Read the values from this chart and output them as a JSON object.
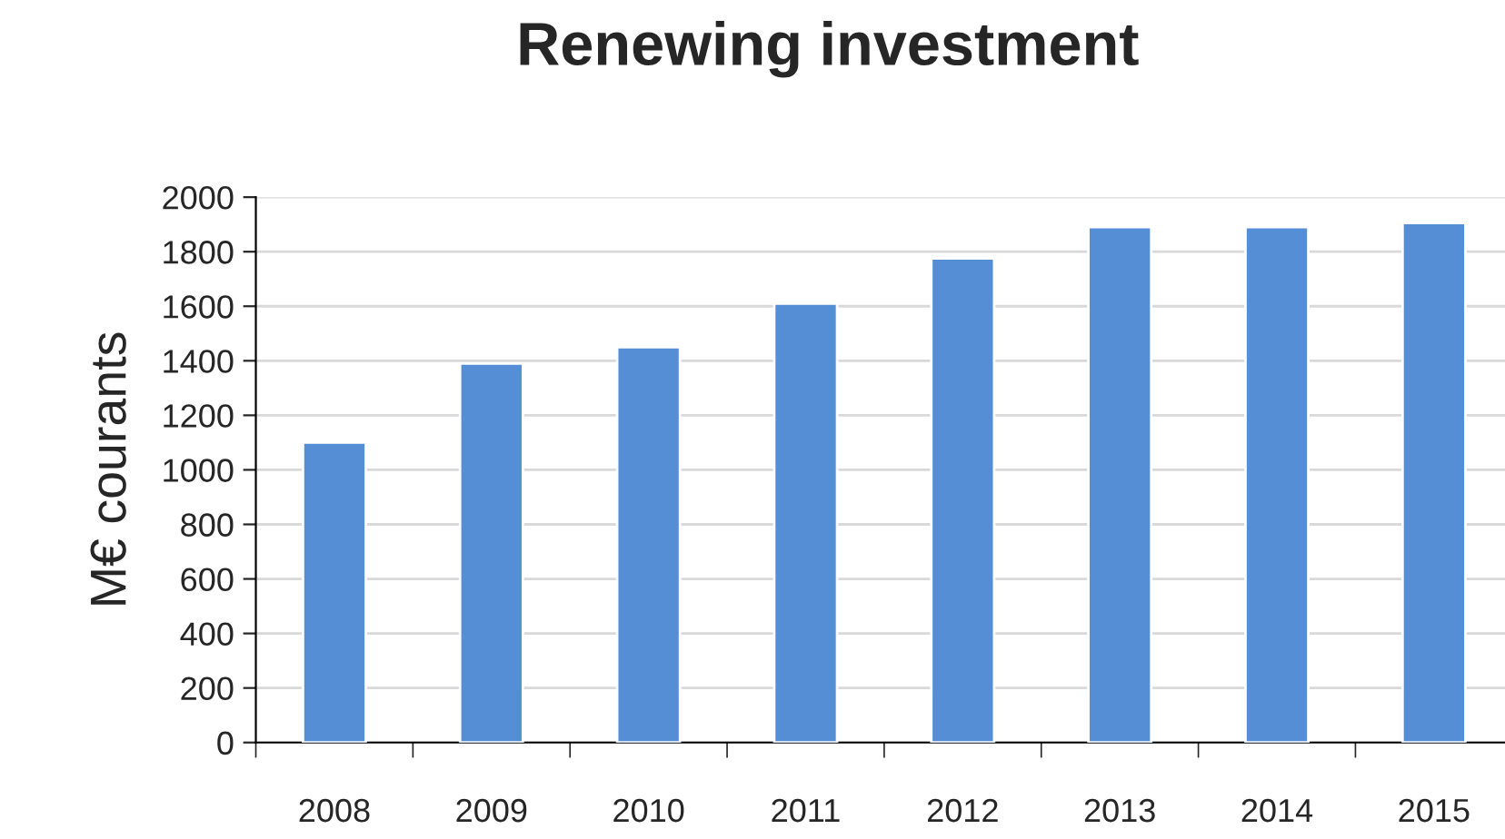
{
  "chart_data": {
    "type": "bar",
    "title": "Renewing investment",
    "ylabel": "M€ courants",
    "categories": [
      "2008",
      "2009",
      "2010",
      "2011",
      "2012",
      "2013",
      "2014",
      "2015"
    ],
    "values": [
      1100,
      1390,
      1450,
      1610,
      1775,
      1890,
      1890,
      1905
    ],
    "color": "#558ed5",
    "ylim": [
      0,
      2000
    ],
    "yticks": [
      0,
      200,
      400,
      600,
      800,
      1000,
      1200,
      1400,
      1600,
      1800,
      2000
    ],
    "grid": "y"
  }
}
